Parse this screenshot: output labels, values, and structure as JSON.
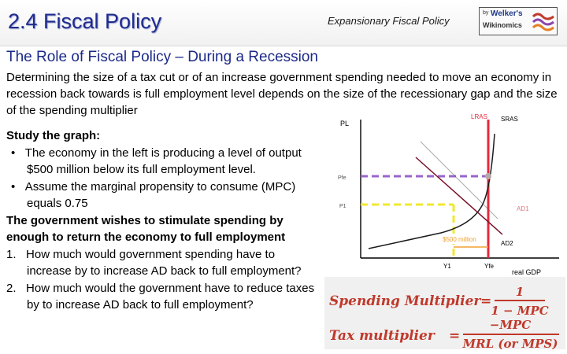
{
  "header": {
    "title": "2.4 Fiscal Policy",
    "subtitle": "Expansionary Fiscal Policy",
    "logo": {
      "by": "by",
      "name": "Welker's",
      "site": "Wikinomics"
    }
  },
  "heading": "The Role of Fiscal Policy – During a Recession",
  "intro": "Determining the size of a tax cut or of an increase government spending needed to move an economy in recession back towards is full employment level depends on the size of the recessionary gap and the size of the spending multiplier",
  "study": {
    "title": "Study the graph:",
    "bullets": [
      "The economy in the left is producing a level of output $500 million below its full employment level.",
      "Assume the marginal propensity to consume (MPC) equals 0.75"
    ],
    "bullet_marker": "•",
    "goal": "The government wishes to stimulate spending by enough to return the economy to full employment",
    "questions": [
      "How much would government spending have to increase by to increase AD back to full employment?",
      "How much would the government have to reduce taxes by to increase AD back to full employment?"
    ],
    "question_markers": [
      "1.",
      "2."
    ]
  },
  "graph": {
    "y_axis": "PL",
    "x_axis": "real GDP",
    "lras": "LRAS",
    "sras": "SRAS",
    "pfe": "Pfe",
    "p1": "P1",
    "ad1": "AD1",
    "ad2": "AD2",
    "y1": "Y1",
    "yfe": "Yfe",
    "gap_label": "$500 million",
    "colors": {
      "lras": "#e8283c",
      "ad": "#7a0f2a",
      "pfe": "#9966cc",
      "p1": "#f0e830",
      "gap": "#f0a030",
      "sras": "#1a1a1a"
    }
  },
  "formulas": {
    "spending_label": "Spending Multiplier",
    "spending_num": "1",
    "spending_den": "1 − MPC",
    "tax_label": "Tax multiplier",
    "tax_num": "−MPC",
    "tax_den": "MRL (or MPS)",
    "equals": "=",
    "color": "#c0392b"
  }
}
